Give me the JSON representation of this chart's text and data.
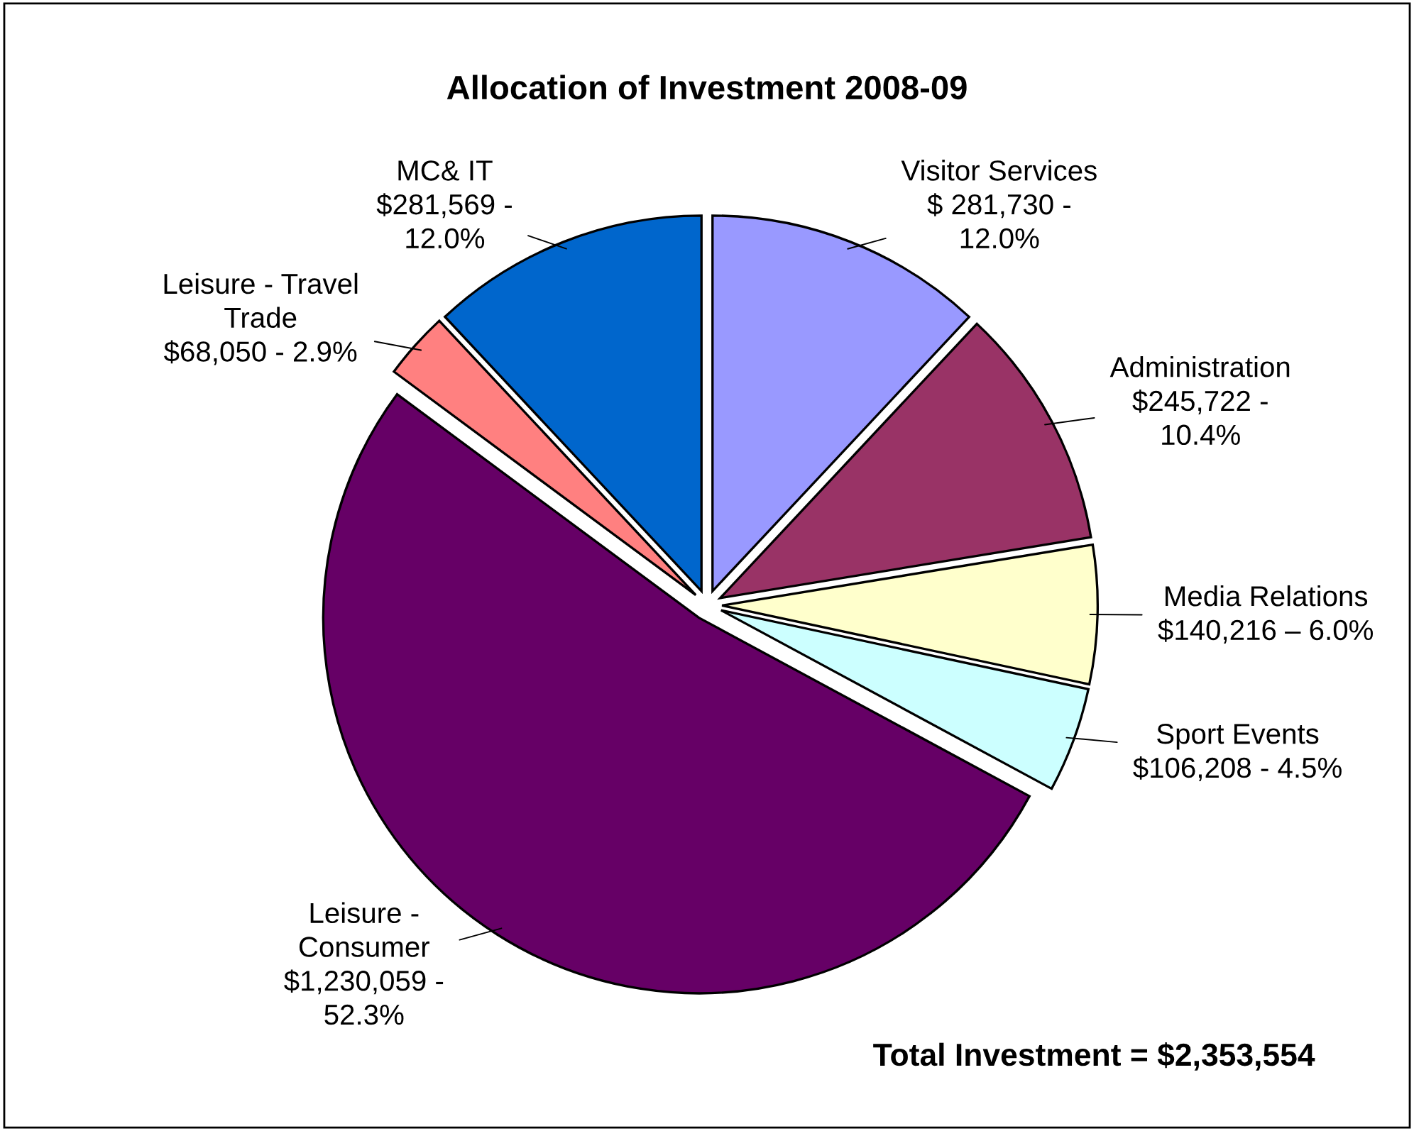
{
  "chart_data": {
    "type": "pie",
    "title": "Allocation of Investment 2008-09",
    "categories": [
      "Visitor Services",
      "Administration",
      "Media Relations",
      "Sport Events",
      "Leisure -\nConsumer",
      "Leisure - Travel\nTrade",
      "MC& IT"
    ],
    "values": [
      281730,
      245722,
      140216,
      106208,
      1230059,
      68050,
      281569
    ],
    "value_labels": [
      "$ 281,730 -\n12.0%",
      "$245,722 -\n10.4%",
      "$140,216 – 6.0%",
      "$106,208 - 4.5%",
      "$1,230,059 -\n52.3%",
      "$68,050 - 2.9%",
      "$281,569 -\n12.0%"
    ],
    "colors": [
      "#9999ff",
      "#993366",
      "#ffffcc",
      "#ccffff",
      "#660066",
      "#ff8080",
      "#0066cc"
    ],
    "annotations": [
      "Total Investment = $2,353,554"
    ]
  }
}
